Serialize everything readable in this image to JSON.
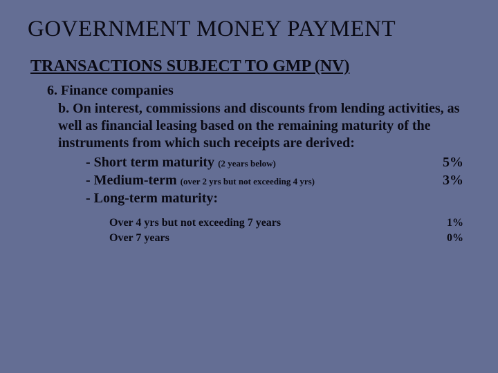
{
  "title": "GOVERNMENT  MONEY PAYMENT",
  "subtitle": "TRANSACTIONS SUBJECT TO GMP (NV)",
  "section": "6. Finance companies",
  "sub_b": "b. On interest, commissions and discounts from lending activities, as well as financial leasing based on the remaining maturity of the instruments from which such receipts are derived:",
  "rows": [
    {
      "label": "- Short term maturity ",
      "small": "(2 years below)",
      "pct": "5%"
    },
    {
      "label": "- Medium-term ",
      "small": "(over 2 yrs but not exceeding 4 yrs)",
      "pct": "3%"
    },
    {
      "label": "- Long-term maturity:",
      "small": "",
      "pct": ""
    }
  ],
  "details": [
    {
      "label": "Over 4 yrs but not exceeding 7 years",
      "pct": "1%"
    },
    {
      "label": "Over 7 years",
      "pct": "0%"
    }
  ]
}
